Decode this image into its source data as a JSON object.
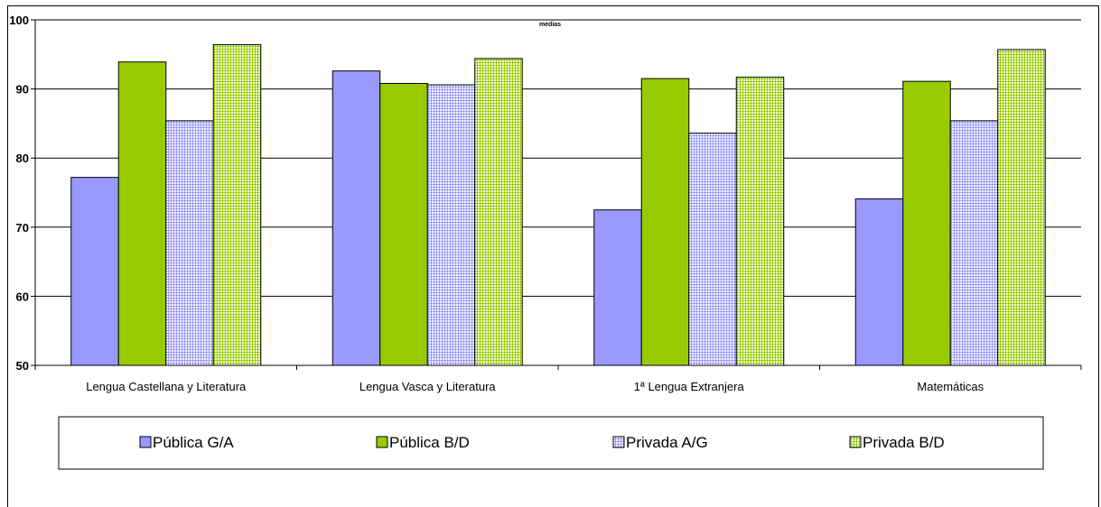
{
  "chart_data": {
    "type": "bar",
    "title": "medias",
    "categories": [
      "Lengua Castellana y Literatura",
      "Lengua Vasca y Literatura",
      "1ª Lengua Extranjera",
      "Matemáticas"
    ],
    "series": [
      {
        "name": "Pública G/A",
        "values": [
          77.2,
          92.6,
          72.5,
          74.1
        ],
        "color": "#9999ff",
        "pattern": "solid"
      },
      {
        "name": "Pública B/D",
        "values": [
          93.9,
          90.8,
          91.5,
          91.1
        ],
        "color": "#99cc00",
        "pattern": "solid"
      },
      {
        "name": "Privada A/G",
        "values": [
          85.4,
          90.6,
          83.6,
          85.4
        ],
        "color": "#9999ff",
        "pattern": "grid"
      },
      {
        "name": "Privada B/D",
        "values": [
          96.4,
          94.4,
          91.7,
          95.7
        ],
        "color": "#99cc00",
        "pattern": "grid"
      }
    ],
    "ylim": [
      50,
      100
    ],
    "yticks": [
      "50",
      "60",
      "70",
      "80",
      "90",
      "100"
    ],
    "xlabel": "",
    "ylabel": "",
    "grid": true,
    "legend": "bottom"
  }
}
